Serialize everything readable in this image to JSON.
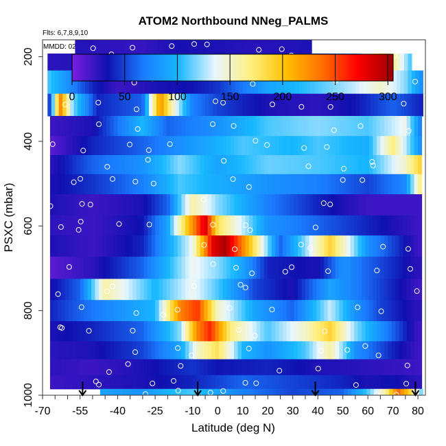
{
  "chart_data": {
    "type": "heatmap",
    "title": "ATOM2 Northbound NNeg_PALMS",
    "annotations": [
      "Flts: 6,7,8,9,10",
      "MMDD: 0210,0213,0215,0218,0219"
    ],
    "xlabel": "Latitude (deg N)",
    "ylabel": "PSXC (mbar)",
    "xlim": [
      -70,
      83
    ],
    "ylim": [
      1000,
      160
    ],
    "y_reversed": true,
    "x_tick_labels": [
      "-70",
      "-55",
      "-40",
      "-25",
      "-10",
      "0",
      "10",
      "20",
      "30",
      "40",
      "50",
      "60",
      "70",
      "80"
    ],
    "x_tick_values": [
      -70,
      -55,
      -40,
      -25,
      -10,
      0,
      10,
      20,
      30,
      40,
      50,
      60,
      70,
      80
    ],
    "y_tick_labels": [
      "200",
      "400",
      "600",
      "800",
      "1000"
    ],
    "y_tick_values": [
      200,
      400,
      600,
      800,
      1000
    ],
    "colorbar": {
      "range": [
        0,
        305
      ],
      "tick_labels": [
        "0",
        "50",
        "100",
        "150",
        "200",
        "250",
        "300"
      ],
      "tick_values": [
        0,
        50,
        100,
        150,
        200,
        250,
        300
      ],
      "colors": [
        "#7a1fe0",
        "#1010b0",
        "#1a7cff",
        "#18b8ff",
        "#e8f6ff",
        "#fff080",
        "#ffc000",
        "#ff7000",
        "#ff0000",
        "#9a0000"
      ]
    },
    "profile_arrows_lat": [
      -54,
      -8,
      39,
      79
    ],
    "layers": [
      {
        "p": 180,
        "lat_min": -57,
        "lat_max": 37,
        "lats": [
          -57,
          -45,
          -30,
          -15,
          0,
          15,
          37
        ],
        "values": [
          28,
          25,
          22,
          32,
          30,
          26,
          30
        ]
      },
      {
        "p": 205,
        "lat_min": -68,
        "lat_max": 77,
        "lats": [
          -68,
          -45,
          -30,
          -20,
          0,
          20,
          40,
          55,
          62,
          66,
          72,
          77
        ],
        "values": [
          25,
          30,
          45,
          60,
          40,
          35,
          40,
          90,
          175,
          200,
          150,
          110
        ]
      },
      {
        "p": 260,
        "lat_min": -68,
        "lat_max": 81,
        "lats": [
          -68,
          -60,
          -50,
          -40,
          -25,
          -10,
          0,
          20,
          40,
          55,
          65,
          75,
          81
        ],
        "values": [
          110,
          80,
          40,
          20,
          30,
          35,
          45,
          90,
          110,
          130,
          150,
          120,
          80
        ]
      },
      {
        "p": 315,
        "lat_min": -68,
        "lat_max": 81,
        "lats": [
          -68,
          -63,
          -58,
          -48,
          -30,
          -23,
          -17,
          -10,
          0,
          20,
          40,
          55,
          70,
          81
        ],
        "values": [
          20,
          230,
          120,
          40,
          60,
          225,
          140,
          70,
          50,
          30,
          25,
          35,
          60,
          40
        ]
      },
      {
        "p": 365,
        "lat_min": -67,
        "lat_max": 81,
        "lats": [
          -67,
          -50,
          -30,
          -20,
          0,
          20,
          40,
          60,
          75,
          81
        ],
        "values": [
          20,
          30,
          100,
          60,
          80,
          110,
          120,
          110,
          140,
          70
        ]
      },
      {
        "p": 410,
        "lat_min": -67,
        "lat_max": 81,
        "lats": [
          -67,
          -50,
          -30,
          -10,
          10,
          30,
          40,
          60,
          70,
          81
        ],
        "values": [
          10,
          40,
          60,
          85,
          110,
          100,
          110,
          95,
          170,
          80
        ]
      },
      {
        "p": 455,
        "lat_min": -67,
        "lat_max": 81,
        "lats": [
          -67,
          -50,
          -30,
          -15,
          0,
          20,
          40,
          60,
          75,
          81
        ],
        "values": [
          25,
          60,
          80,
          120,
          90,
          115,
          110,
          100,
          150,
          190
        ]
      },
      {
        "p": 500,
        "lat_min": -67,
        "lat_max": 81,
        "lats": [
          -67,
          -50,
          -30,
          -15,
          0,
          20,
          40,
          60,
          75,
          81
        ],
        "values": [
          30,
          45,
          70,
          110,
          95,
          80,
          70,
          50,
          75,
          170
        ]
      },
      {
        "p": 550,
        "lat_min": -67,
        "lat_max": 81,
        "lats": [
          -67,
          -50,
          -30,
          -20,
          -10,
          0,
          20,
          40,
          60,
          80
        ],
        "values": [
          30,
          20,
          30,
          60,
          160,
          120,
          70,
          40,
          20,
          20
        ]
      },
      {
        "p": 600,
        "lat_min": -67,
        "lat_max": 81,
        "lats": [
          -67,
          -50,
          -30,
          -20,
          -12,
          -5,
          0,
          10,
          20,
          40,
          60,
          80
        ],
        "values": [
          25,
          20,
          35,
          90,
          200,
          285,
          180,
          130,
          80,
          60,
          40,
          20
        ]
      },
      {
        "p": 645,
        "lat_min": -67,
        "lat_max": 81,
        "lats": [
          -67,
          -50,
          -30,
          -20,
          -10,
          -2,
          3,
          10,
          25,
          35,
          45,
          60,
          80
        ],
        "values": [
          30,
          20,
          40,
          90,
          140,
          280,
          300,
          230,
          60,
          120,
          190,
          80,
          20
        ]
      },
      {
        "p": 700,
        "lat_min": -67,
        "lat_max": 81,
        "lats": [
          -67,
          -50,
          -30,
          -20,
          -10,
          0,
          10,
          20,
          40,
          50,
          60,
          80
        ],
        "values": [
          10,
          25,
          60,
          100,
          140,
          120,
          90,
          40,
          30,
          80,
          60,
          25
        ]
      },
      {
        "p": 750,
        "lat_min": -67,
        "lat_max": 81,
        "lats": [
          -67,
          -55,
          -45,
          -35,
          -25,
          -10,
          0,
          15,
          30,
          45,
          60,
          80
        ],
        "values": [
          30,
          60,
          160,
          130,
          100,
          140,
          110,
          50,
          30,
          90,
          60,
          20
        ]
      },
      {
        "p": 800,
        "lat_min": -67,
        "lat_max": 81,
        "lats": [
          -67,
          -55,
          -40,
          -25,
          -15,
          -8,
          0,
          15,
          30,
          45,
          55,
          65,
          80
        ],
        "values": [
          40,
          60,
          80,
          100,
          230,
          255,
          150,
          90,
          60,
          130,
          80,
          50,
          25
        ]
      },
      {
        "p": 850,
        "lat_min": -67,
        "lat_max": 81,
        "lats": [
          -67,
          -50,
          -30,
          -15,
          -8,
          -3,
          5,
          20,
          35,
          45,
          55,
          70,
          80
        ],
        "values": [
          30,
          40,
          60,
          120,
          230,
          260,
          170,
          110,
          150,
          190,
          120,
          60,
          20
        ]
      },
      {
        "p": 895,
        "lat_min": -67,
        "lat_max": 81,
        "lats": [
          -67,
          -50,
          -30,
          -15,
          -8,
          0,
          10,
          20,
          35,
          45,
          55,
          70,
          80
        ],
        "values": [
          25,
          30,
          50,
          90,
          150,
          180,
          100,
          80,
          110,
          160,
          80,
          40,
          20
        ]
      },
      {
        "p": 935,
        "lat_min": -67,
        "lat_max": 81,
        "lats": [
          -67,
          -50,
          -30,
          -10,
          0,
          20,
          40,
          60,
          80
        ],
        "values": [
          25,
          20,
          30,
          45,
          35,
          40,
          30,
          25,
          20
        ]
      },
      {
        "p": 970,
        "lat_min": -67,
        "lat_max": 81,
        "lats": [
          -67,
          -50,
          -30,
          -10,
          10,
          30,
          50,
          60,
          70,
          80
        ],
        "values": [
          20,
          25,
          30,
          40,
          60,
          50,
          40,
          30,
          35,
          25
        ]
      },
      {
        "p": 1000,
        "lat_min": -47,
        "lat_max": 81,
        "lats": [
          -47,
          -30,
          -20,
          -10,
          0,
          10,
          30,
          50,
          60,
          67,
          72,
          76,
          81
        ],
        "values": [
          90,
          80,
          100,
          110,
          90,
          70,
          50,
          60,
          110,
          160,
          240,
          200,
          120
        ]
      }
    ]
  }
}
